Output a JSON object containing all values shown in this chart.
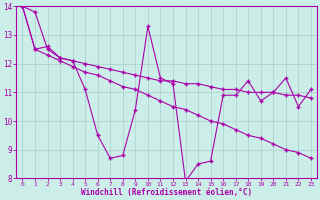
{
  "xlabel": "Windchill (Refroidissement éolien,°C)",
  "bg_color": "#cceee8",
  "line_color": "#aa00aa",
  "grid_color": "#aacccc",
  "axis_color": "#aa00aa",
  "tick_color": "#aa00aa",
  "xlim": [
    -0.5,
    23.5
  ],
  "ylim": [
    8,
    14
  ],
  "yticks": [
    8,
    9,
    10,
    11,
    12,
    13,
    14
  ],
  "xticks": [
    0,
    1,
    2,
    3,
    4,
    5,
    6,
    7,
    8,
    9,
    10,
    11,
    12,
    13,
    14,
    15,
    16,
    17,
    18,
    19,
    20,
    21,
    22,
    23
  ],
  "series": [
    [
      14.0,
      13.8,
      12.5,
      12.2,
      12.1,
      11.1,
      9.5,
      8.7,
      8.8,
      10.4,
      13.3,
      11.5,
      11.3,
      7.9,
      8.5,
      8.6,
      10.9,
      10.9,
      11.4,
      10.7,
      11.0,
      11.5,
      10.5,
      11.1
    ],
    [
      14.0,
      12.5,
      12.6,
      12.2,
      12.1,
      12.0,
      11.9,
      11.8,
      11.7,
      11.6,
      11.5,
      11.4,
      11.4,
      11.3,
      11.3,
      11.2,
      11.1,
      11.1,
      11.0,
      11.0,
      11.0,
      10.9,
      10.9,
      10.8
    ],
    [
      14.0,
      12.5,
      12.3,
      12.1,
      11.9,
      11.7,
      11.6,
      11.4,
      11.2,
      11.1,
      10.9,
      10.7,
      10.5,
      10.4,
      10.2,
      10.0,
      9.9,
      9.7,
      9.5,
      9.4,
      9.2,
      9.0,
      8.9,
      8.7
    ]
  ]
}
